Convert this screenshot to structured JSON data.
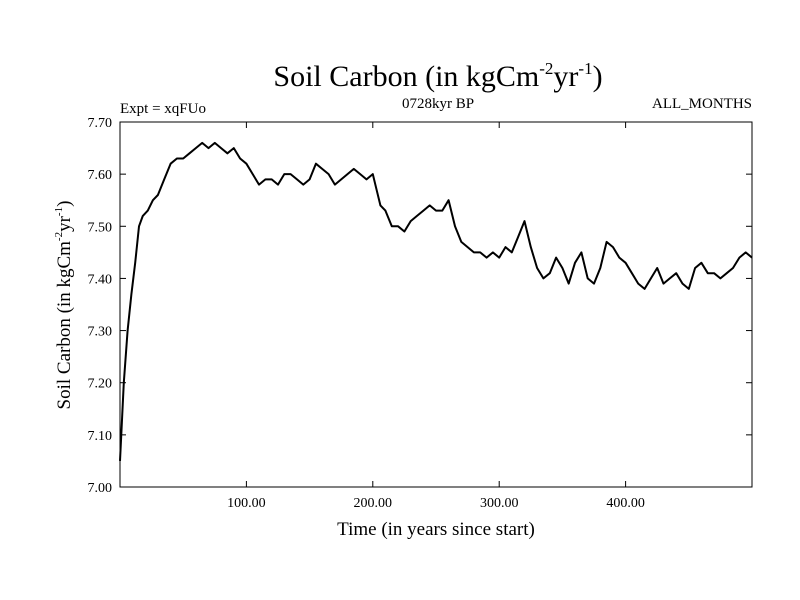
{
  "chart_data": {
    "type": "line",
    "title": {
      "prefix": "Soil Carbon (in kgCm",
      "sup1": "-2",
      "mid": "yr",
      "sup2": "-1",
      "suffix": ")"
    },
    "subtitle_left": "Expt = xqFUo",
    "subtitle_center": "0728kyr BP",
    "subtitle_right": "ALL_MONTHS",
    "xlabel": "Time (in years since start)",
    "ylabel": {
      "prefix": "Soil Carbon (in kgCm",
      "sup1": "-2",
      "mid": "yr",
      "sup2": "-1",
      "suffix": ")"
    },
    "xlim": [
      0,
      500
    ],
    "ylim": [
      7.0,
      7.7
    ],
    "xticks": [
      100,
      200,
      300,
      400
    ],
    "xtick_labels": [
      "100.00",
      "200.00",
      "300.00",
      "400.00"
    ],
    "yticks": [
      7.0,
      7.1,
      7.2,
      7.3,
      7.4,
      7.5,
      7.6,
      7.7
    ],
    "ytick_labels": [
      "7.00",
      "7.10",
      "7.20",
      "7.30",
      "7.40",
      "7.50",
      "7.60",
      "7.70"
    ],
    "series": [
      {
        "name": "Soil Carbon",
        "color": "#000000",
        "x": [
          0,
          3,
          6,
          9,
          12,
          15,
          18,
          22,
          26,
          30,
          35,
          40,
          45,
          50,
          55,
          60,
          65,
          70,
          75,
          80,
          85,
          90,
          95,
          100,
          105,
          110,
          115,
          120,
          125,
          130,
          135,
          140,
          145,
          150,
          155,
          160,
          165,
          170,
          175,
          180,
          185,
          190,
          195,
          200,
          203,
          206,
          210,
          215,
          220,
          225,
          230,
          235,
          240,
          245,
          250,
          255,
          260,
          265,
          270,
          275,
          280,
          285,
          290,
          295,
          300,
          305,
          310,
          315,
          320,
          325,
          330,
          335,
          340,
          345,
          350,
          355,
          360,
          365,
          370,
          375,
          380,
          385,
          390,
          395,
          400,
          405,
          410,
          415,
          420,
          425,
          430,
          435,
          440,
          445,
          450,
          455,
          460,
          465,
          470,
          475,
          480,
          485,
          490,
          495,
          500
        ],
        "y": [
          7.05,
          7.2,
          7.3,
          7.37,
          7.43,
          7.5,
          7.52,
          7.53,
          7.55,
          7.56,
          7.59,
          7.62,
          7.63,
          7.63,
          7.64,
          7.65,
          7.66,
          7.65,
          7.66,
          7.65,
          7.64,
          7.65,
          7.63,
          7.62,
          7.6,
          7.58,
          7.59,
          7.59,
          7.58,
          7.6,
          7.6,
          7.59,
          7.58,
          7.59,
          7.62,
          7.61,
          7.6,
          7.58,
          7.59,
          7.6,
          7.61,
          7.6,
          7.59,
          7.6,
          7.57,
          7.54,
          7.53,
          7.5,
          7.5,
          7.49,
          7.51,
          7.52,
          7.53,
          7.54,
          7.53,
          7.53,
          7.55,
          7.5,
          7.47,
          7.46,
          7.45,
          7.45,
          7.44,
          7.45,
          7.44,
          7.46,
          7.45,
          7.48,
          7.51,
          7.46,
          7.42,
          7.4,
          7.41,
          7.44,
          7.42,
          7.39,
          7.43,
          7.45,
          7.4,
          7.39,
          7.42,
          7.47,
          7.46,
          7.44,
          7.43,
          7.41,
          7.39,
          7.38,
          7.4,
          7.42,
          7.39,
          7.4,
          7.41,
          7.39,
          7.38,
          7.42,
          7.43,
          7.41,
          7.41,
          7.4,
          7.41,
          7.42,
          7.44,
          7.45,
          7.44
        ]
      }
    ]
  }
}
